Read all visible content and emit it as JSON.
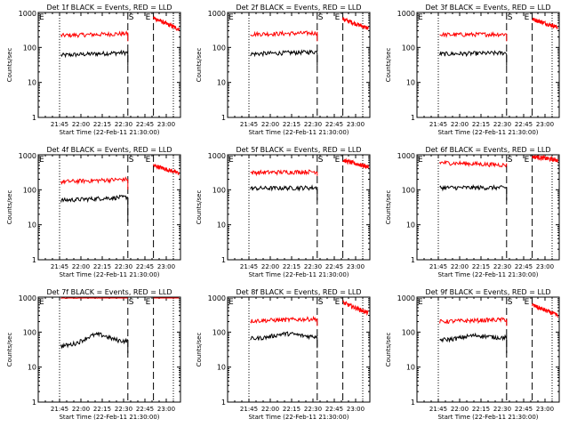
{
  "colors": {
    "events": "#000000",
    "lld": "#ff0000",
    "axes": "#000000",
    "background": "#ffffff"
  },
  "common": {
    "ylabel": "Counts/sec",
    "xlabel": "Start Time (22-Feb-11 21:30:00)",
    "x_tick_labels": [
      "21:45",
      "22:00",
      "22:15",
      "22:30",
      "22:45",
      "23:00"
    ],
    "y_tick_labels": [
      "1",
      "10",
      "100",
      "1000"
    ],
    "markers": {
      "s": "S",
      "e": "E"
    }
  },
  "chart_data": [
    {
      "type": "line",
      "title": "Det 1f BLACK = Events, RED = LLD",
      "x_unit": "minutes after 21:30",
      "xlim": [
        0,
        100
      ],
      "ylim": [
        1,
        1000
      ],
      "yscale": "log",
      "dotted_vlines": [
        15,
        95
      ],
      "dashed_vlines": [
        63,
        81
      ],
      "s_marker_x": 63,
      "e_marker_x": 81,
      "series": [
        {
          "color": "#000000",
          "segments": [
            {
              "x0": 16,
              "x1": 63,
              "start": 60,
              "end": 72,
              "drop": 30
            }
          ]
        },
        {
          "color": "#ff0000",
          "segments": [
            {
              "x0": 16,
              "x1": 63,
              "start": 220,
              "end": 250,
              "drop": 150
            },
            {
              "x0": 81,
              "x1": 99,
              "start": 700,
              "end": 330
            }
          ]
        }
      ]
    },
    {
      "type": "line",
      "title": "Det 2f BLACK = Events, RED = LLD",
      "x_unit": "minutes after 21:30",
      "xlim": [
        0,
        100
      ],
      "ylim": [
        1,
        1000
      ],
      "yscale": "log",
      "dotted_vlines": [
        15,
        95
      ],
      "dashed_vlines": [
        63,
        81
      ],
      "s_marker_x": 63,
      "e_marker_x": 81,
      "series": [
        {
          "color": "#000000",
          "segments": [
            {
              "x0": 16,
              "x1": 63,
              "start": 65,
              "end": 75,
              "drop": 30
            }
          ]
        },
        {
          "color": "#ff0000",
          "segments": [
            {
              "x0": 16,
              "x1": 63,
              "start": 240,
              "end": 260,
              "drop": 150
            },
            {
              "x0": 81,
              "x1": 99,
              "start": 650,
              "end": 350
            }
          ]
        }
      ]
    },
    {
      "type": "line",
      "title": "Det 3f BLACK = Events, RED = LLD",
      "x_unit": "minutes after 21:30",
      "xlim": [
        0,
        100
      ],
      "ylim": [
        1,
        1000
      ],
      "yscale": "log",
      "dotted_vlines": [
        15,
        95
      ],
      "dashed_vlines": [
        63,
        81
      ],
      "s_marker_x": 63,
      "e_marker_x": 81,
      "series": [
        {
          "color": "#000000",
          "segments": [
            {
              "x0": 16,
              "x1": 63,
              "start": 65,
              "end": 70,
              "drop": 30
            }
          ]
        },
        {
          "color": "#ff0000",
          "segments": [
            {
              "x0": 16,
              "x1": 63,
              "start": 230,
              "end": 240,
              "drop": 150
            },
            {
              "x0": 81,
              "x1": 99,
              "start": 650,
              "end": 380
            }
          ]
        }
      ]
    },
    {
      "type": "line",
      "title": "Det 4f BLACK = Events, RED = LLD",
      "x_unit": "minutes after 21:30",
      "xlim": [
        0,
        100
      ],
      "ylim": [
        1,
        1000
      ],
      "yscale": "log",
      "dotted_vlines": [
        15,
        95
      ],
      "dashed_vlines": [
        63,
        81
      ],
      "s_marker_x": 63,
      "e_marker_x": 81,
      "series": [
        {
          "color": "#000000",
          "segments": [
            {
              "x0": 16,
              "x1": 63,
              "start": 50,
              "end": 62,
              "drop": 12
            }
          ]
        },
        {
          "color": "#ff0000",
          "segments": [
            {
              "x0": 16,
              "x1": 63,
              "start": 170,
              "end": 200,
              "drop": 100
            },
            {
              "x0": 81,
              "x1": 99,
              "start": 500,
              "end": 300
            }
          ]
        }
      ]
    },
    {
      "type": "line",
      "title": "Det 5f BLACK = Events, RED = LLD",
      "x_unit": "minutes after 21:30",
      "xlim": [
        0,
        100
      ],
      "ylim": [
        1,
        1000
      ],
      "yscale": "log",
      "dotted_vlines": [
        15,
        95
      ],
      "dashed_vlines": [
        63,
        81
      ],
      "s_marker_x": 63,
      "e_marker_x": 81,
      "series": [
        {
          "color": "#000000",
          "segments": [
            {
              "x0": 16,
              "x1": 63,
              "start": 110,
              "end": 115,
              "drop": 50
            }
          ]
        },
        {
          "color": "#ff0000",
          "segments": [
            {
              "x0": 16,
              "x1": 63,
              "start": 310,
              "end": 330,
              "drop": 250
            },
            {
              "x0": 81,
              "x1": 99,
              "start": 700,
              "end": 450
            }
          ]
        }
      ]
    },
    {
      "type": "line",
      "title": "Det 6f BLACK = Events, RED = LLD",
      "x_unit": "minutes after 21:30",
      "xlim": [
        0,
        100
      ],
      "ylim": [
        1,
        1000
      ],
      "yscale": "log",
      "dotted_vlines": [
        15,
        95
      ],
      "dashed_vlines": [
        63,
        81
      ],
      "s_marker_x": 63,
      "e_marker_x": 81,
      "series": [
        {
          "color": "#000000",
          "segments": [
            {
              "x0": 16,
              "x1": 63,
              "start": 115,
              "end": 115,
              "drop": 50
            }
          ]
        },
        {
          "color": "#ff0000",
          "segments": [
            {
              "x0": 16,
              "x1": 63,
              "start": 600,
              "end": 510,
              "drop": 500
            },
            {
              "x0": 81,
              "x1": 99,
              "start": 900,
              "end": 700
            }
          ]
        }
      ]
    },
    {
      "type": "line",
      "title": "Det 7f BLACK = Events, RED = LLD",
      "x_unit": "minutes after 21:30",
      "xlim": [
        0,
        100
      ],
      "ylim": [
        1,
        1000
      ],
      "yscale": "log",
      "dotted_vlines": [
        15,
        95
      ],
      "dashed_vlines": [
        63,
        81
      ],
      "s_marker_x": 63,
      "e_marker_x": 81,
      "series": [
        {
          "color": "#000000",
          "segments": [
            {
              "x0": 16,
              "x1": 63,
              "start": 40,
              "end": 55,
              "peak": 85,
              "drop": 25
            }
          ]
        },
        {
          "color": "#ff0000",
          "segments": [
            {
              "x0": 16,
              "x1": 63,
              "start": 1050,
              "end": 1100
            },
            {
              "x0": 81,
              "x1": 99,
              "start": 1100,
              "end": 1100
            }
          ]
        }
      ]
    },
    {
      "type": "line",
      "title": "Det 8f BLACK = Events, RED = LLD",
      "x_unit": "minutes after 21:30",
      "xlim": [
        0,
        100
      ],
      "ylim": [
        1,
        1000
      ],
      "yscale": "log",
      "dotted_vlines": [
        15,
        95
      ],
      "dashed_vlines": [
        63,
        81
      ],
      "s_marker_x": 63,
      "e_marker_x": 81,
      "series": [
        {
          "color": "#000000",
          "segments": [
            {
              "x0": 16,
              "x1": 63,
              "start": 65,
              "end": 75,
              "peak": 90,
              "drop": 35
            }
          ]
        },
        {
          "color": "#ff0000",
          "segments": [
            {
              "x0": 16,
              "x1": 63,
              "start": 210,
              "end": 240,
              "drop": 150
            },
            {
              "x0": 81,
              "x1": 99,
              "start": 700,
              "end": 350
            }
          ]
        }
      ]
    },
    {
      "type": "line",
      "title": "Det 9f BLACK = Events, RED = LLD",
      "x_unit": "minutes after 21:30",
      "xlim": [
        0,
        100
      ],
      "ylim": [
        1,
        1000
      ],
      "yscale": "log",
      "dotted_vlines": [
        15,
        95
      ],
      "dashed_vlines": [
        63,
        81
      ],
      "s_marker_x": 63,
      "e_marker_x": 81,
      "series": [
        {
          "color": "#000000",
          "segments": [
            {
              "x0": 16,
              "x1": 63,
              "start": 60,
              "end": 70,
              "peak": 80,
              "drop": 25
            }
          ]
        },
        {
          "color": "#ff0000",
          "segments": [
            {
              "x0": 16,
              "x1": 63,
              "start": 200,
              "end": 230,
              "drop": 150
            },
            {
              "x0": 81,
              "x1": 99,
              "start": 600,
              "end": 300
            }
          ]
        }
      ]
    }
  ]
}
